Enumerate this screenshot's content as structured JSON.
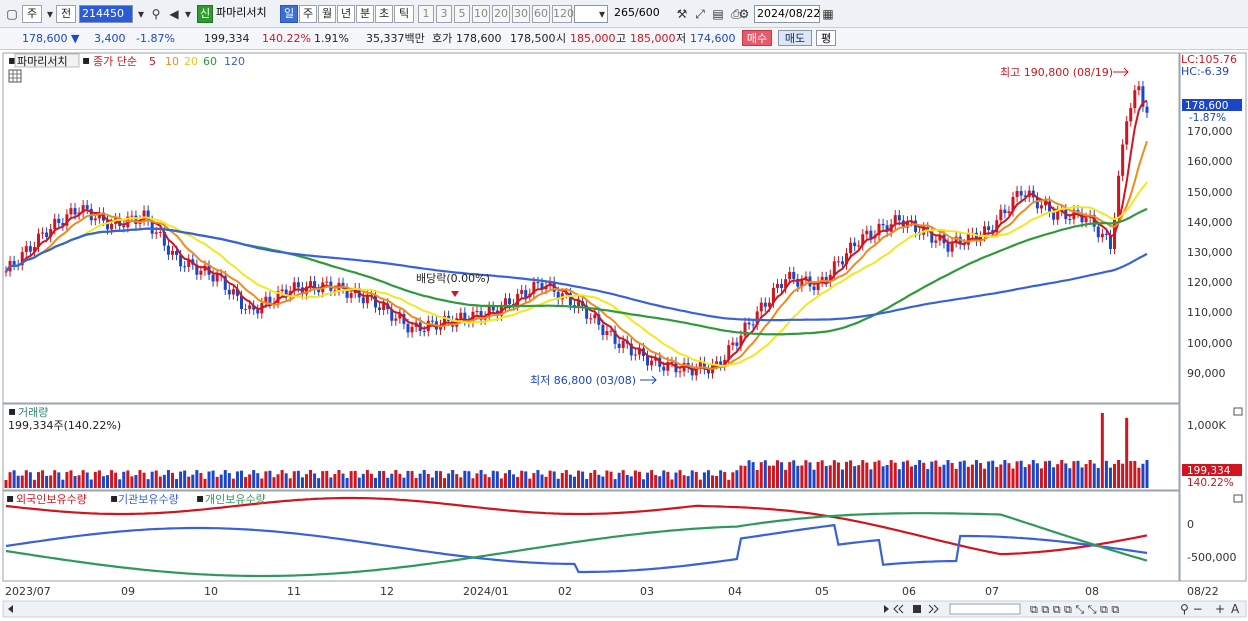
{
  "toolbar": {
    "period_label": "주",
    "prev_label": "전",
    "code": "214450",
    "new_badge": "신",
    "stock_name": "파마리서치",
    "periods": [
      "일",
      "주",
      "월",
      "년",
      "분",
      "초",
      "틱"
    ],
    "active_period": "일",
    "intervals": [
      "1",
      "3",
      "5",
      "10",
      "20",
      "30",
      "60",
      "120"
    ],
    "count": "265",
    "count_total": "/600",
    "date": "2024/08/22"
  },
  "quote": {
    "price": "178,600",
    "change": "3,400",
    "change_rate": "-1.87%",
    "volume": "199,334",
    "volume_ratio": "140.22%",
    "turnover_rate": "1.91%",
    "amount": "35,337백만",
    "bid_label": "호가",
    "bid1": "178,600",
    "bid2": "178,500",
    "open_label": "시",
    "open": "185,000",
    "high_label": "고",
    "high": "185,000",
    "low_label": "저",
    "low": "174,600",
    "buy_button": "매수",
    "sell_button": "매도",
    "avg_button": "평"
  },
  "price_panel": {
    "title": "파마리서치",
    "ma_label": "종가 단순",
    "ma_periods": [
      "5",
      "10",
      "20",
      "60",
      "120"
    ],
    "lc_label": "LC:105.76",
    "hc_label": "HC:-6.39",
    "max_label": "최고 190,800 (08/19)",
    "min_label": "최저 86,800 (03/08)",
    "dividend_label": "배당락(0.00%)",
    "price_tag": "178,600",
    "price_tag_change": "-1.87%",
    "y_ticks": [
      "170,000",
      "160,000",
      "150,000",
      "140,000",
      "130,000",
      "120,000",
      "110,000",
      "100,000",
      "90,000"
    ]
  },
  "volume_panel": {
    "title": "거래량",
    "value_label": "199,334주(140.22%)",
    "y_tick": "1,000K",
    "tag_value": "199,334",
    "tag_ratio": "140.22%"
  },
  "holding_panel": {
    "legend": [
      "외국인보유수량",
      "기관보유수량",
      "개인보유수량"
    ],
    "y_ticks": [
      "0",
      "-500,000"
    ]
  },
  "x_axis": {
    "labels": [
      "2023/07",
      "09",
      "10",
      "11",
      "12",
      "2024/01",
      "02",
      "03",
      "04",
      "05",
      "06",
      "07",
      "08",
      "08/22"
    ]
  },
  "colors": {
    "up": "#d2141e",
    "down": "#1b46c9",
    "ma5": "#d2141e",
    "ma10": "#f08a1e",
    "ma20": "#f3e81e",
    "ma60": "#2e9a3a",
    "ma120": "#3a62d8",
    "foreign": "#d2141e",
    "institution": "#3a62d8",
    "individual": "#2e9a5a"
  }
}
